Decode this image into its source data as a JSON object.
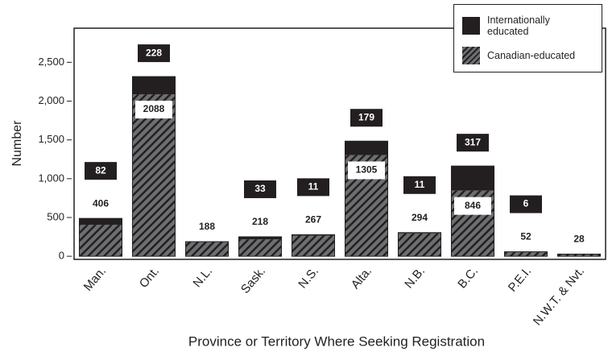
{
  "chart_data": {
    "type": "bar",
    "stacked": true,
    "x_label": "Province or Territory Where Seeking Registration",
    "y_label": "Number",
    "categories": [
      "Man.",
      "Ont.",
      "N.L.",
      "Sask.",
      "N.S.",
      "Alta.",
      "N.B.",
      "B.C.",
      "P.E.I.",
      "N.W.T. & Nvt."
    ],
    "series": [
      {
        "name": "Canadian-educated",
        "color": "#6d6e71",
        "hatch": true,
        "values": [
          406,
          2088,
          188,
          218,
          267,
          1305,
          294,
          846,
          52,
          28
        ]
      },
      {
        "name": "Internationally educated",
        "color": "#231f20",
        "values": [
          82,
          228,
          null,
          33,
          11,
          179,
          11,
          317,
          6,
          null
        ]
      }
    ],
    "legend_position": "upper right",
    "ylim": [
      -40,
      2940
    ],
    "yticks": [
      0,
      500,
      {
        "value": 1000,
        "label": "1,000"
      },
      {
        "value": 1500,
        "label": "1,500"
      },
      {
        "value": 2000,
        "label": "2,000"
      },
      {
        "value": 2500,
        "label": "2,500"
      }
    ]
  }
}
